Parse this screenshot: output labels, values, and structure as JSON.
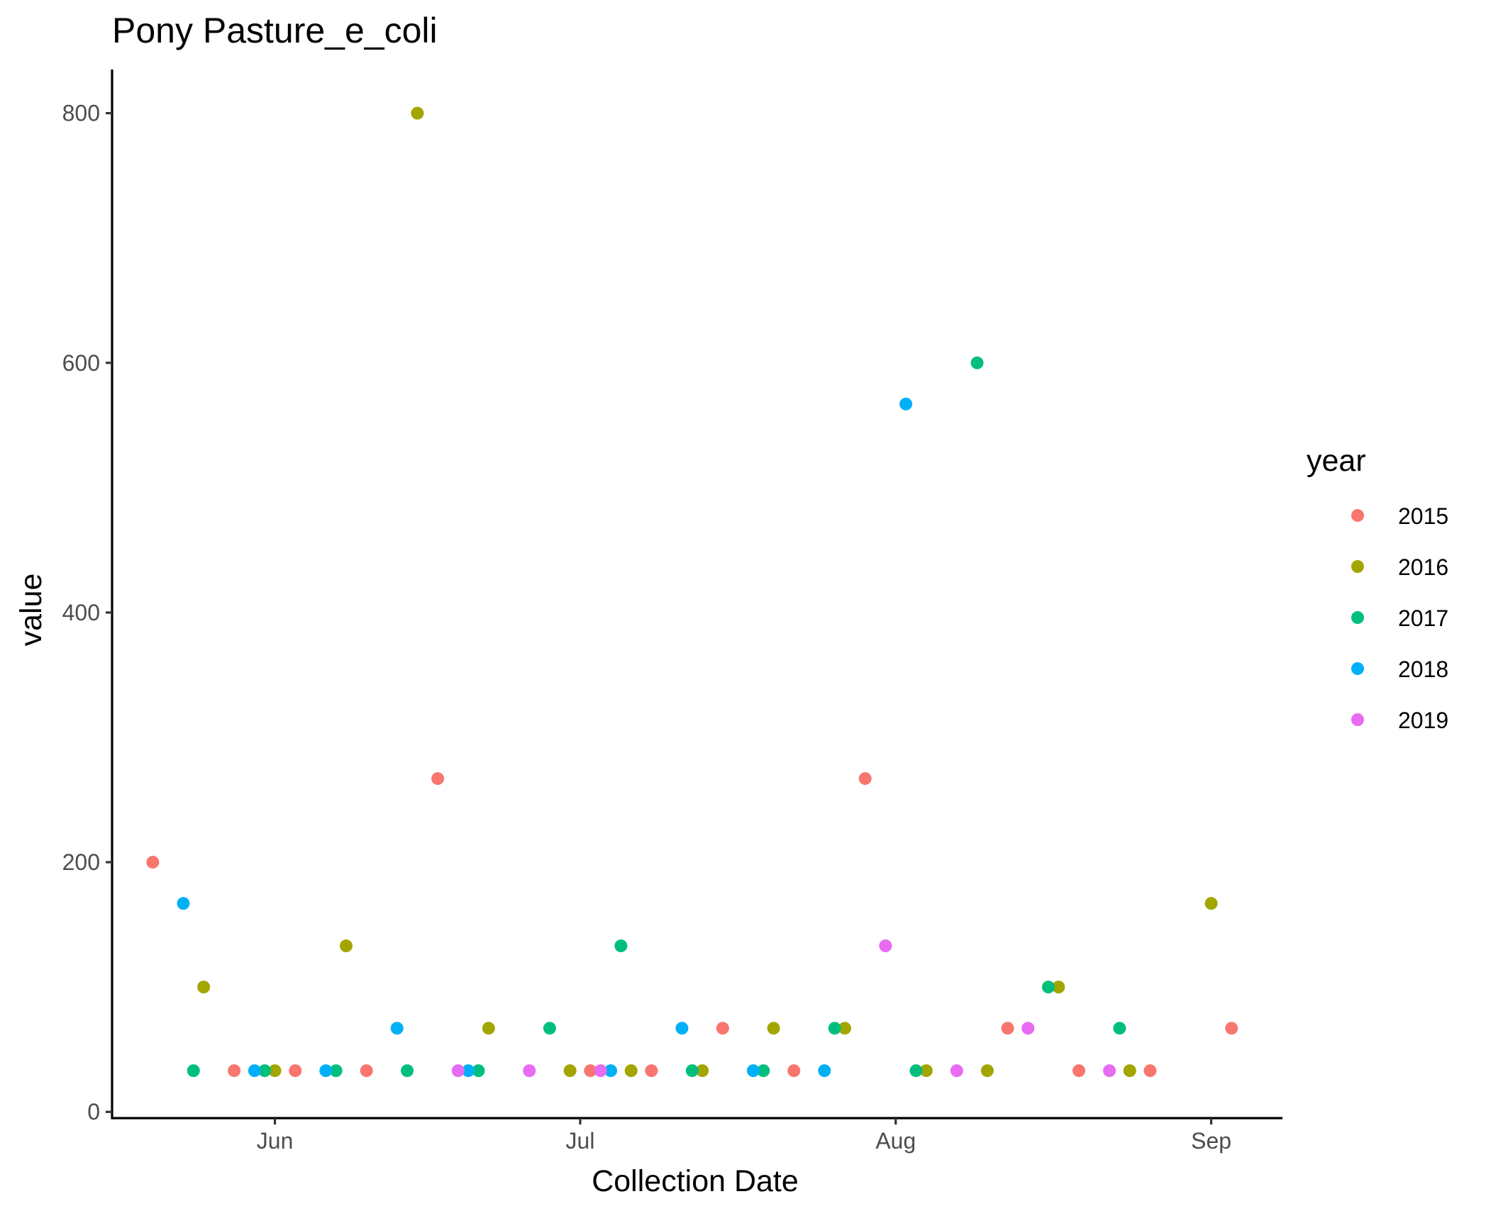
{
  "chart_data": {
    "type": "scatter",
    "title": "Pony Pasture_e_coli",
    "xlabel": "Collection Date",
    "ylabel": "value",
    "x_ticks": [
      {
        "label": "Jun",
        "date": "06-01"
      },
      {
        "label": "Jul",
        "date": "07-01"
      },
      {
        "label": "Aug",
        "date": "08-01"
      },
      {
        "label": "Sep",
        "date": "09-01"
      }
    ],
    "y_ticks": [
      0,
      200,
      400,
      600,
      800
    ],
    "xlim": [
      "05-16",
      "09-08"
    ],
    "ylim": [
      -5,
      835
    ],
    "grid": false,
    "legend": {
      "title": "year",
      "position": "right"
    },
    "series": [
      {
        "name": "2015",
        "color": "#F8766D",
        "points": [
          {
            "x": "05-20",
            "y": 200
          },
          {
            "x": "05-28",
            "y": 33
          },
          {
            "x": "06-03",
            "y": 33
          },
          {
            "x": "06-10",
            "y": 33
          },
          {
            "x": "06-17",
            "y": 267
          },
          {
            "x": "07-02",
            "y": 33
          },
          {
            "x": "07-08",
            "y": 33
          },
          {
            "x": "07-15",
            "y": 67
          },
          {
            "x": "07-22",
            "y": 33
          },
          {
            "x": "07-29",
            "y": 267
          },
          {
            "x": "08-12",
            "y": 67
          },
          {
            "x": "08-19",
            "y": 33
          },
          {
            "x": "08-26",
            "y": 33
          },
          {
            "x": "09-03",
            "y": 67
          }
        ]
      },
      {
        "name": "2016",
        "color": "#A3A500",
        "points": [
          {
            "x": "05-25",
            "y": 100
          },
          {
            "x": "06-01",
            "y": 33
          },
          {
            "x": "06-08",
            "y": 133
          },
          {
            "x": "06-15",
            "y": 800
          },
          {
            "x": "06-22",
            "y": 67
          },
          {
            "x": "06-30",
            "y": 33
          },
          {
            "x": "07-06",
            "y": 33
          },
          {
            "x": "07-13",
            "y": 33
          },
          {
            "x": "07-20",
            "y": 67
          },
          {
            "x": "07-27",
            "y": 67
          },
          {
            "x": "08-04",
            "y": 33
          },
          {
            "x": "08-10",
            "y": 33
          },
          {
            "x": "08-17",
            "y": 100
          },
          {
            "x": "08-24",
            "y": 33
          },
          {
            "x": "09-01",
            "y": 167
          }
        ]
      },
      {
        "name": "2017",
        "color": "#00BF7D",
        "points": [
          {
            "x": "05-24",
            "y": 33
          },
          {
            "x": "05-31",
            "y": 33
          },
          {
            "x": "06-07",
            "y": 33
          },
          {
            "x": "06-14",
            "y": 33
          },
          {
            "x": "06-21",
            "y": 33
          },
          {
            "x": "06-28",
            "y": 67
          },
          {
            "x": "07-05",
            "y": 133
          },
          {
            "x": "07-12",
            "y": 33
          },
          {
            "x": "07-19",
            "y": 33
          },
          {
            "x": "07-26",
            "y": 67
          },
          {
            "x": "08-03",
            "y": 33
          },
          {
            "x": "08-09",
            "y": 600
          },
          {
            "x": "08-16",
            "y": 100
          },
          {
            "x": "08-23",
            "y": 67
          }
        ]
      },
      {
        "name": "2018",
        "color": "#00B0F6",
        "points": [
          {
            "x": "05-23",
            "y": 167
          },
          {
            "x": "05-30",
            "y": 33
          },
          {
            "x": "06-06",
            "y": 33
          },
          {
            "x": "06-13",
            "y": 67
          },
          {
            "x": "06-20",
            "y": 33
          },
          {
            "x": "07-04",
            "y": 33
          },
          {
            "x": "07-11",
            "y": 67
          },
          {
            "x": "07-18",
            "y": 33
          },
          {
            "x": "07-25",
            "y": 33
          },
          {
            "x": "08-02",
            "y": 567
          }
        ]
      },
      {
        "name": "2019",
        "color": "#E76BF3",
        "points": [
          {
            "x": "06-19",
            "y": 33
          },
          {
            "x": "06-26",
            "y": 33
          },
          {
            "x": "07-03",
            "y": 33
          },
          {
            "x": "07-31",
            "y": 133
          },
          {
            "x": "08-07",
            "y": 33
          },
          {
            "x": "08-14",
            "y": 67
          },
          {
            "x": "08-22",
            "y": 33
          }
        ]
      }
    ]
  }
}
